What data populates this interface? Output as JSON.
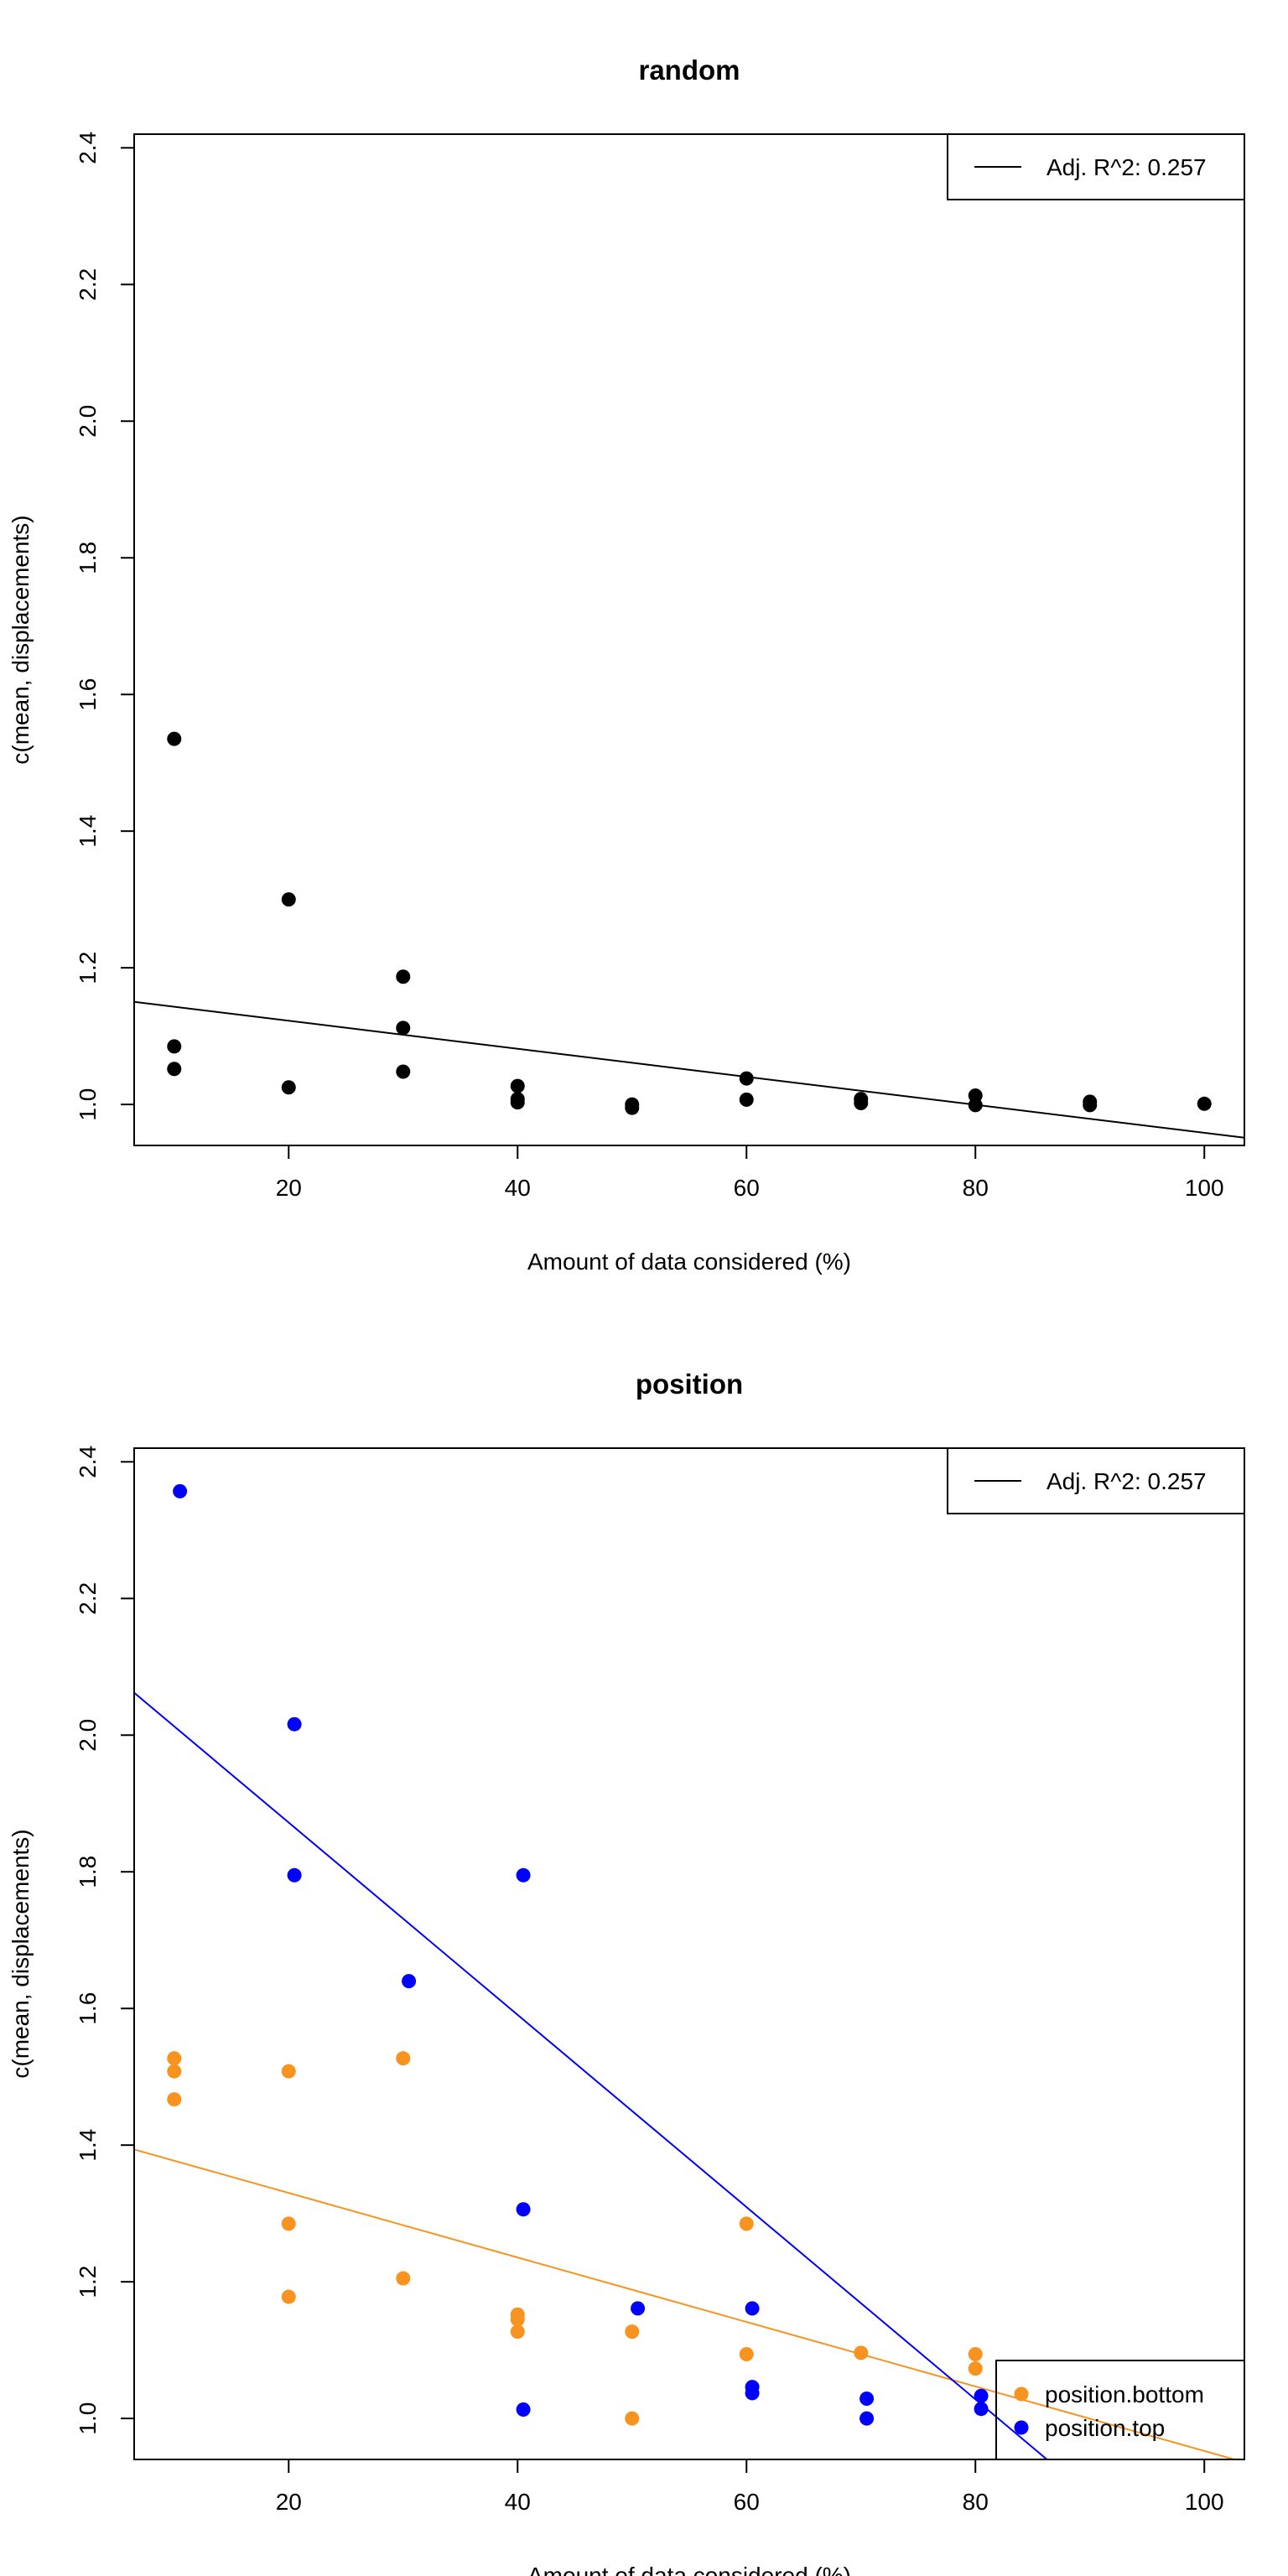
{
  "chart_data": [
    {
      "type": "scatter",
      "title": "random",
      "xlabel": "Amount of data considered (%)",
      "ylabel": "c(mean, displacements)",
      "xlim": [
        6.5,
        103.5
      ],
      "ylim": [
        0.94,
        2.42
      ],
      "x_ticks": [
        20,
        40,
        60,
        80,
        100
      ],
      "y_ticks": [
        1.0,
        1.2,
        1.4,
        1.6,
        1.8,
        2.0,
        2.2,
        2.4
      ],
      "y_tick_labels": [
        "1.0",
        "1.2",
        "1.4",
        "1.6",
        "1.8",
        "2.0",
        "2.2",
        "2.4"
      ],
      "grid": false,
      "legend": {
        "position": "top-right",
        "entries": [
          {
            "label": "Adj. R^2: 0.257",
            "symbol": "line",
            "color": "#000000"
          }
        ]
      },
      "series": [
        {
          "color": "#000000",
          "points": [
            [
              10,
              1.535
            ],
            [
              10,
              1.085
            ],
            [
              10,
              1.052
            ],
            [
              20,
              1.3
            ],
            [
              20,
              1.025
            ],
            [
              30,
              1.187
            ],
            [
              30,
              1.112
            ],
            [
              30,
              1.048
            ],
            [
              40,
              1.027
            ],
            [
              40,
              1.008
            ],
            [
              40,
              1.003
            ],
            [
              50,
              1.0
            ],
            [
              50,
              0.995
            ],
            [
              60,
              1.038
            ],
            [
              60,
              1.007
            ],
            [
              70,
              1.008
            ],
            [
              70,
              1.002
            ],
            [
              80,
              1.013
            ],
            [
              80,
              0.999
            ],
            [
              90,
              1.004
            ],
            [
              90,
              0.999
            ],
            [
              100,
              1.001
            ]
          ],
          "fit": {
            "slope": -0.00205,
            "intercept": 1.1635
          }
        }
      ]
    },
    {
      "type": "scatter",
      "title": "position",
      "xlabel": "Amount of data considered (%)",
      "ylabel": "c(mean, displacements)",
      "xlim": [
        6.5,
        103.5
      ],
      "ylim": [
        0.94,
        2.42
      ],
      "x_ticks": [
        20,
        40,
        60,
        80,
        100
      ],
      "y_ticks": [
        1.0,
        1.2,
        1.4,
        1.6,
        1.8,
        2.0,
        2.2,
        2.4
      ],
      "y_tick_labels": [
        "1.0",
        "1.2",
        "1.4",
        "1.6",
        "1.8",
        "2.0",
        "2.2",
        "2.4"
      ],
      "grid": false,
      "legend": {
        "position": "top-right",
        "entries": [
          {
            "label": "Adj. R^2: 0.257",
            "symbol": "line",
            "color": "#000000"
          }
        ]
      },
      "legend2": {
        "position": "bottom-right",
        "entries": [
          {
            "label": "position.bottom",
            "symbol": "dot",
            "color": "#F7931E"
          },
          {
            "label": "position.top",
            "symbol": "dot",
            "color": "#0000FF"
          }
        ]
      },
      "series": [
        {
          "name": "position.bottom",
          "color": "#F7931E",
          "points": [
            [
              10,
              1.527
            ],
            [
              10,
              1.508
            ],
            [
              10,
              1.467
            ],
            [
              20,
              1.508
            ],
            [
              20,
              1.285
            ],
            [
              20,
              1.178
            ],
            [
              30,
              1.527
            ],
            [
              30,
              1.205
            ],
            [
              40,
              1.152
            ],
            [
              40,
              1.145
            ],
            [
              40,
              1.127
            ],
            [
              50,
              1.127
            ],
            [
              50,
              1.0
            ],
            [
              60,
              1.285
            ],
            [
              60,
              1.094
            ],
            [
              70,
              1.096
            ],
            [
              80,
              1.094
            ],
            [
              80,
              1.073
            ]
          ],
          "fit": {
            "slope": -0.00472,
            "intercept": 1.4244
          }
        },
        {
          "name": "position.top",
          "color": "#0000FF",
          "points": [
            [
              10.5,
              2.357
            ],
            [
              20.5,
              2.016
            ],
            [
              20.5,
              1.795
            ],
            [
              30.5,
              1.64
            ],
            [
              40.5,
              1.795
            ],
            [
              40.5,
              1.306
            ],
            [
              40.5,
              1.013
            ],
            [
              50.5,
              1.161
            ],
            [
              60.5,
              1.161
            ],
            [
              60.5,
              1.046
            ],
            [
              60.5,
              1.037
            ],
            [
              70.5,
              1.029
            ],
            [
              70.5,
              1.0
            ],
            [
              80.5,
              1.033
            ],
            [
              80.5,
              1.014
            ]
          ],
          "fit": {
            "slope": -0.01407,
            "intercept": 2.1535
          }
        }
      ]
    }
  ]
}
